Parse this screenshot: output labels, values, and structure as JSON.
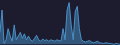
{
  "chart_data": {
    "type": "area",
    "x": [
      0,
      1,
      2,
      3,
      4,
      5,
      6,
      7,
      8,
      9,
      10,
      11,
      12,
      13,
      14,
      15,
      16,
      17,
      18,
      19,
      20,
      21,
      22,
      23,
      24,
      25,
      26,
      27,
      28,
      29,
      30,
      31,
      32,
      33,
      34,
      35,
      36,
      37,
      38,
      39,
      40,
      41,
      42,
      43,
      44,
      45,
      46,
      47,
      48,
      49,
      50,
      51,
      52,
      53,
      54,
      55,
      56,
      57,
      58,
      59
    ],
    "values": [
      300,
      600,
      150,
      200,
      350,
      250,
      180,
      400,
      200,
      250,
      300,
      220,
      280,
      200,
      250,
      200,
      180,
      220,
      260,
      200,
      180,
      210,
      190,
      200,
      180,
      200,
      190,
      180,
      200,
      190,
      180,
      350,
      200,
      600,
      700,
      400,
      200,
      580,
      650,
      350,
      200,
      180,
      170,
      180,
      190,
      170,
      160,
      170,
      180,
      160,
      155,
      150,
      160,
      155,
      150,
      145,
      140,
      150,
      145,
      140
    ],
    "baseline": 140,
    "color": "#4a90c8",
    "xlim": [
      0,
      59
    ],
    "ylim": [
      130,
      735
    ],
    "tick_labels": false
  }
}
